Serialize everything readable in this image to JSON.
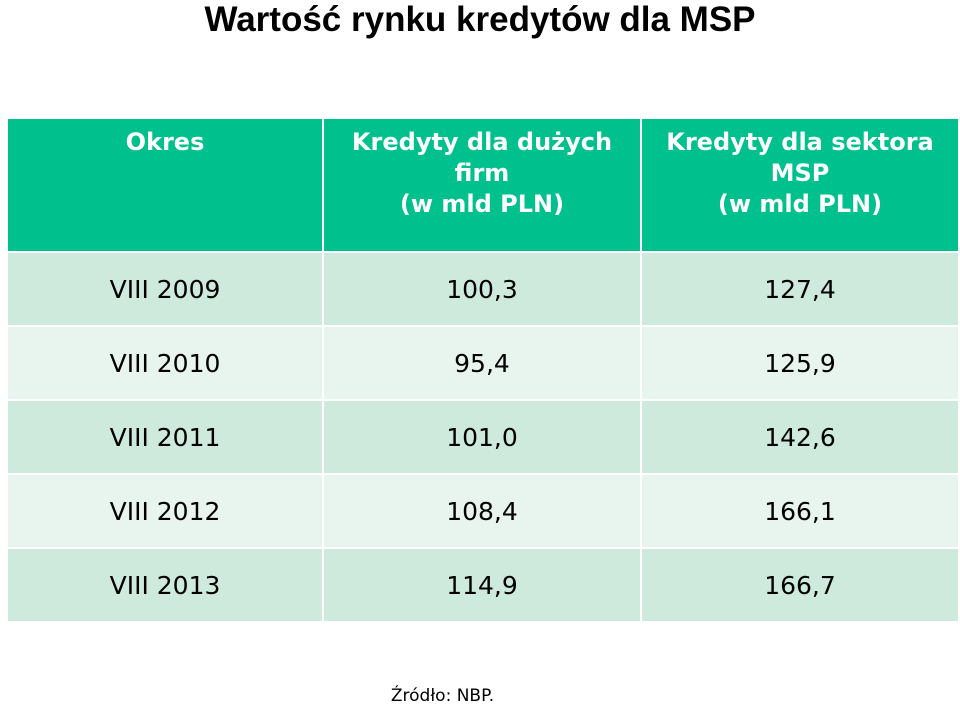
{
  "title": "Wartość rynku kredytów dla MSP",
  "colors": {
    "header_bg": "#00c08e",
    "row_odd_bg": "#cdeadd",
    "row_even_bg": "#e8f5ef",
    "header_text": "#ffffff"
  },
  "chart_data": {
    "type": "table",
    "title": "Wartość rynku kredytów dla MSP",
    "columns": [
      {
        "lines": [
          "Okres"
        ]
      },
      {
        "lines": [
          "Kredyty dla dużych",
          "firm",
          "(w mld PLN)"
        ]
      },
      {
        "lines": [
          "Kredyty dla sektora",
          "MSP",
          "(w mld PLN)"
        ]
      }
    ],
    "rows": [
      [
        "VIII 2009",
        "100,3",
        "127,4"
      ],
      [
        "VIII 2010",
        "95,4",
        "125,9"
      ],
      [
        "VIII 2011",
        "101,0",
        "142,6"
      ],
      [
        "VIII 2012",
        "108,4",
        "166,1"
      ],
      [
        "VIII 2013",
        "114,9",
        "166,7"
      ]
    ]
  },
  "source": "Źródło: NBP."
}
